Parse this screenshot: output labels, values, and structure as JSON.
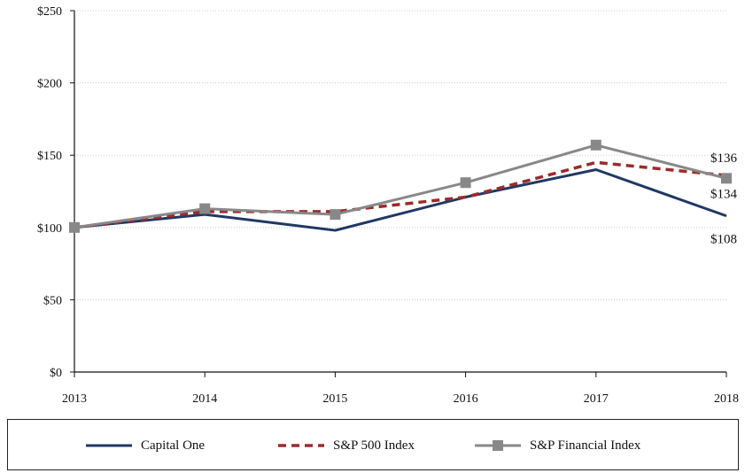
{
  "chart_data": {
    "type": "line",
    "title": "",
    "xlabel": "",
    "ylabel": "",
    "categories": [
      "2013",
      "2014",
      "2015",
      "2016",
      "2017",
      "2018"
    ],
    "ylim": [
      0,
      250
    ],
    "yticks": [
      0,
      50,
      100,
      150,
      200,
      250
    ],
    "ytick_labels": [
      "$0",
      "$50",
      "$100",
      "$150",
      "$200",
      "$250"
    ],
    "grid": "horizontal-dotted",
    "legend_placement": "bottom",
    "series": [
      {
        "name": "Capital One",
        "values": [
          100,
          109,
          98,
          121,
          140,
          108
        ],
        "color": "#1f3864",
        "style": "solid",
        "end_label": "$108"
      },
      {
        "name": "S&P 500 Index",
        "values": [
          100,
          111,
          111,
          121,
          145,
          136
        ],
        "color": "#9b2b2b",
        "style": "dashed",
        "end_label": "$136"
      },
      {
        "name": "S&P Financial Index",
        "values": [
          100,
          113,
          109,
          131,
          157,
          134
        ],
        "color": "#888888",
        "style": "solid-square-markers",
        "end_label": "$134"
      }
    ]
  }
}
